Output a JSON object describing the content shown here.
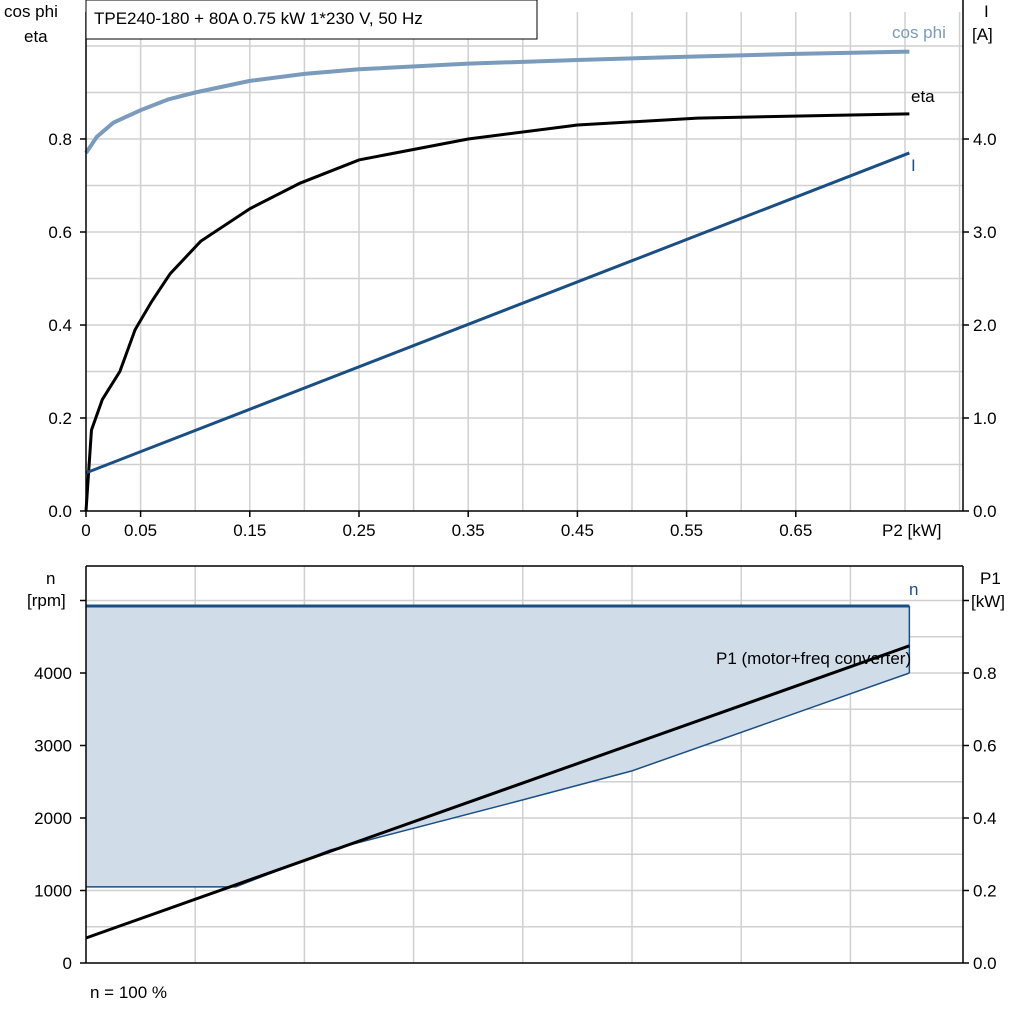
{
  "chart_data": [
    {
      "type": "line",
      "title": "TPE240-180 + 80A   0.75 kW   1*230 V, 50 Hz",
      "xlabel": "P2 [kW]",
      "ylabel_left": [
        "cos phi",
        "eta"
      ],
      "ylabel_right": [
        "I",
        "[A]"
      ],
      "xlim": [
        0,
        0.805
      ],
      "ylim_left": [
        0,
        1.0
      ],
      "ylim_right": [
        0,
        5.0
      ],
      "x_ticks": [
        "0",
        "0.05",
        "0.15",
        "0.25",
        "0.35",
        "0.45",
        "0.55",
        "0.65"
      ],
      "x_tick_values": [
        0,
        0.05,
        0.15,
        0.25,
        0.35,
        0.45,
        0.55,
        0.65
      ],
      "y_ticks_left": [
        "0.0",
        "0.2",
        "0.4",
        "0.6",
        "0.8"
      ],
      "y_ticks_right": [
        "0.0",
        "1.0",
        "2.0",
        "3.0",
        "4.0"
      ],
      "grid": true,
      "series": [
        {
          "name": "cos phi",
          "axis": "left",
          "color": "#7a9bbb",
          "x": [
            0,
            0.01,
            0.025,
            0.05,
            0.075,
            0.1,
            0.15,
            0.2,
            0.25,
            0.35,
            0.45,
            0.55,
            0.65,
            0.754
          ],
          "y": [
            0.77,
            0.805,
            0.835,
            0.862,
            0.885,
            0.9,
            0.925,
            0.94,
            0.95,
            0.962,
            0.97,
            0.977,
            0.983,
            0.988
          ]
        },
        {
          "name": "eta",
          "axis": "left",
          "color": "#000000",
          "x": [
            0,
            0.005,
            0.015,
            0.031,
            0.045,
            0.06,
            0.077,
            0.105,
            0.15,
            0.196,
            0.25,
            0.35,
            0.45,
            0.56,
            0.754
          ],
          "y": [
            0,
            0.174,
            0.24,
            0.3,
            0.39,
            0.45,
            0.51,
            0.58,
            0.65,
            0.705,
            0.755,
            0.8,
            0.83,
            0.845,
            0.854
          ]
        },
        {
          "name": "I",
          "axis": "right",
          "color": "#1a4f85",
          "x": [
            0,
            0.754
          ],
          "y": [
            0.41,
            3.85
          ]
        }
      ]
    },
    {
      "type": "area",
      "xlabel": "",
      "ylabel_left": [
        "n",
        "[rpm]"
      ],
      "ylabel_right": [
        "P1",
        "[kW]"
      ],
      "xlim": [
        0,
        0.805
      ],
      "ylim_left": [
        0,
        5500
      ],
      "ylim_right": [
        0,
        1.1
      ],
      "y_ticks_left": [
        "0",
        "1000",
        "2000",
        "3000",
        "4000"
      ],
      "y_ticks_right": [
        "0.0",
        "0.2",
        "0.4",
        "0.6",
        "0.8"
      ],
      "grid": true,
      "footnote": "n = 100 %",
      "series": [
        {
          "name": "n",
          "axis": "left",
          "color": "#1a4f85",
          "x": [
            0,
            0.754
          ],
          "y": [
            4925,
            4925
          ]
        },
        {
          "axis": "left",
          "color": "#1a4f85",
          "fill": "#d0dce8",
          "x": [
            0,
            0.137,
            0.224,
            0.4,
            0.5,
            0.754
          ],
          "y": [
            1050,
            1050,
            1560,
            2250,
            2650,
            4000
          ]
        },
        {
          "name": "P1 (motor+freq converter)",
          "axis": "right",
          "color": "#000000",
          "x": [
            0,
            0.754
          ],
          "y": [
            0.069,
            0.875
          ]
        }
      ]
    }
  ]
}
